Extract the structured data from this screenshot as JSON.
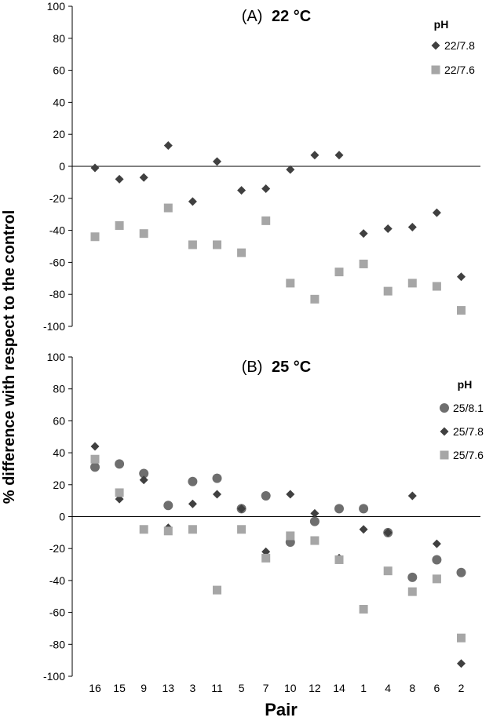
{
  "chart_data": {
    "xlabel": "Pair",
    "ylabel": "% difference with respect to the control",
    "categories": [
      "16",
      "15",
      "9",
      "13",
      "3",
      "11",
      "5",
      "7",
      "10",
      "12",
      "14",
      "1",
      "4",
      "8",
      "6",
      "2"
    ],
    "panels": [
      {
        "type": "scatter",
        "label": "(A)",
        "temperature": "22 °C",
        "legend_title": "pH",
        "ylim": [
          -100,
          100
        ],
        "yticks": [
          100,
          80,
          60,
          40,
          20,
          0,
          -20,
          -40,
          -60,
          -80,
          -100
        ],
        "series": [
          {
            "name": "22/7.8",
            "marker": "diamond",
            "color": "#404040",
            "values": [
              -1,
              -8,
              -7,
              13,
              -22,
              3,
              -15,
              -14,
              -2,
              7,
              7,
              -42,
              -39,
              -38,
              -29,
              -69
            ]
          },
          {
            "name": "22/7.6",
            "marker": "square",
            "color": "#a6a6a6",
            "values": [
              -44,
              -37,
              -42,
              -26,
              -49,
              -49,
              -54,
              -34,
              -73,
              -83,
              -66,
              -61,
              -78,
              -73,
              -75,
              -90
            ]
          }
        ]
      },
      {
        "type": "scatter",
        "label": "(B)",
        "temperature": "25 °C",
        "legend_title": "pH",
        "ylim": [
          -100,
          100
        ],
        "yticks": [
          100,
          80,
          60,
          40,
          20,
          0,
          -20,
          -40,
          -60,
          -80,
          -100
        ],
        "series": [
          {
            "name": "25/8.1",
            "marker": "circle",
            "color": "#6e6e6e",
            "values": [
              31,
              33,
              27,
              7,
              22,
              24,
              5,
              13,
              -16,
              -3,
              5,
              5,
              -10,
              -38,
              -27,
              -35
            ]
          },
          {
            "name": "25/7.8",
            "marker": "diamond",
            "color": "#404040",
            "values": [
              44,
              11,
              23,
              -7,
              8,
              14,
              5,
              -22,
              14,
              2,
              -26,
              -8,
              -10,
              13,
              -17,
              -92
            ]
          },
          {
            "name": "25/7.6",
            "marker": "square",
            "color": "#a6a6a6",
            "values": [
              36,
              15,
              -8,
              -9,
              -8,
              -46,
              -8,
              -26,
              -12,
              -15,
              -27,
              -58,
              -34,
              -47,
              -39,
              -76
            ]
          }
        ]
      }
    ]
  }
}
